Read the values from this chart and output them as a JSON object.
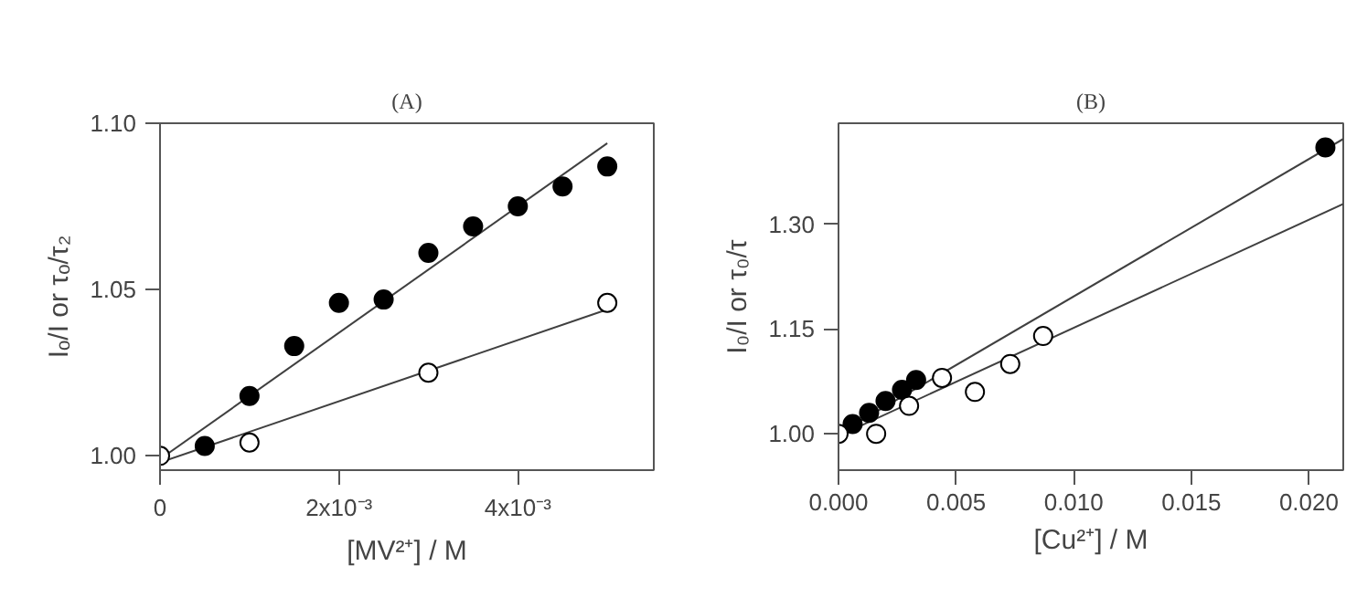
{
  "chart_data": [
    {
      "type": "scatter",
      "title": "(A)",
      "xlabel": "[MV²⁺] / M",
      "ylabel": "Iₒ/I or τₒ/τ₂",
      "xlim": [
        0,
        0.00552
      ],
      "ylim": [
        0.9957,
        1.1
      ],
      "xticks": [
        0,
        {
          "value": 0.002,
          "label": "2x10⁻³"
        },
        {
          "value": 0.004,
          "label": "4x10⁻³"
        }
      ],
      "yticks": [
        {
          "value": 1.0,
          "label": "1.00"
        },
        {
          "value": 1.05,
          "label": "1.05"
        },
        {
          "value": 1.1,
          "label": "1.10"
        }
      ],
      "grid": false,
      "marker": "circle",
      "series": [
        {
          "type": "line",
          "marker": "none",
          "color": "#404040",
          "x": [
            0,
            0.005
          ],
          "values": [
            0.999,
            1.094
          ]
        },
        {
          "type": "line",
          "marker": "none",
          "color": "#404040",
          "x": [
            0,
            0.005
          ],
          "values": [
            0.998,
            1.044
          ]
        },
        {
          "color": "#000000",
          "x": [
            0.0005,
            0.001,
            0.0015,
            0.002,
            0.0025,
            0.003,
            0.0035,
            0.004,
            0.0045,
            0.005
          ],
          "values": [
            1.003,
            1.018,
            1.033,
            1.046,
            1.047,
            1.061,
            1.069,
            1.075,
            1.081,
            1.087
          ]
        },
        {
          "color": "#ffffff",
          "x": [
            0,
            0.001,
            0.003,
            0.005
          ],
          "values": [
            1.0,
            1.004,
            1.025,
            1.046
          ]
        }
      ]
    },
    {
      "type": "scatter",
      "title": "(B)",
      "xlabel": "[Cu²⁺] / M",
      "ylabel": "I₀/I or τ₀/τ",
      "xlim": [
        0,
        0.02146
      ],
      "ylim": [
        0.948,
        1.4445
      ],
      "xticks": [
        {
          "value": 0,
          "label": "0.000"
        },
        {
          "value": 0.005,
          "label": "0.005"
        },
        {
          "value": 0.01,
          "label": "0.010"
        },
        {
          "value": 0.015,
          "label": "0.015"
        },
        {
          "value": 0.02,
          "label": "0.020"
        }
      ],
      "yticks": [
        {
          "value": 1.0,
          "label": "1.00"
        },
        {
          "value": 1.15,
          "label": "1.15"
        },
        {
          "value": 1.3,
          "label": "1.30"
        }
      ],
      "grid": false,
      "marker": "circle",
      "series": [
        {
          "type": "line",
          "marker": "none",
          "color": "#404040",
          "x": [
            0,
            0.02146
          ],
          "values": [
            1.0,
            1.422
          ]
        },
        {
          "type": "line",
          "marker": "none",
          "color": "#404040",
          "x": [
            0,
            0.02146
          ],
          "values": [
            0.997,
            1.329
          ]
        },
        {
          "color": "#000000",
          "x": [
            0.0006,
            0.0013,
            0.002,
            0.0027,
            0.0033,
            0.0207
          ],
          "values": [
            1.014,
            1.03,
            1.047,
            1.063,
            1.077,
            1.41
          ]
        },
        {
          "color": "#ffffff",
          "x": [
            0,
            0.0016,
            0.003,
            0.0044,
            0.0058,
            0.0073,
            0.0087
          ],
          "values": [
            1.0,
            1.0,
            1.04,
            1.08,
            1.06,
            1.1,
            1.14
          ]
        }
      ]
    }
  ]
}
